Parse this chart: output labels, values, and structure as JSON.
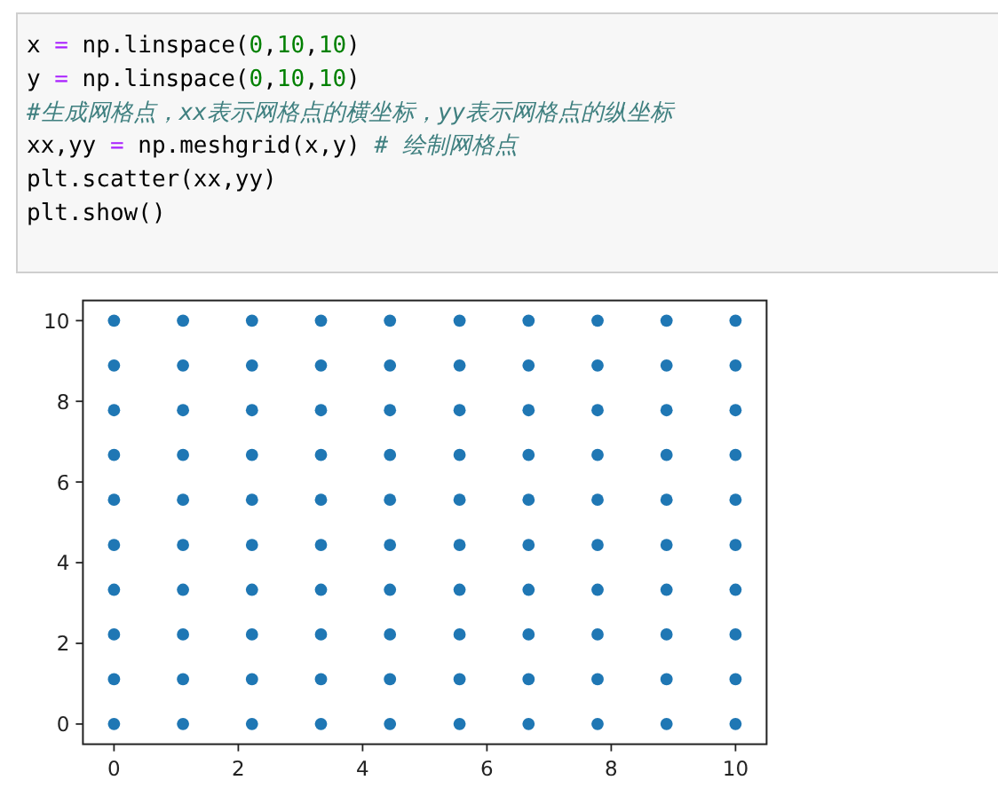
{
  "chart_data": {
    "type": "scatter",
    "marker": "circle",
    "annotations": [
      "x = np.linspace(0,10,10)",
      "y = np.linspace(0,10,10)",
      "#生成网格点，xx表示网格点的横坐标，yy表示网格点的纵坐标",
      "xx,yy = np.meshgrid(x,y) # 绘制网格点",
      "plt.scatter(xx,yy)",
      "plt.show()"
    ],
    "x": [
      0,
      1.11,
      2.22,
      3.33,
      4.44,
      5.56,
      6.67,
      7.78,
      8.89,
      10,
      0,
      1.11,
      2.22,
      3.33,
      4.44,
      5.56,
      6.67,
      7.78,
      8.89,
      10,
      0,
      1.11,
      2.22,
      3.33,
      4.44,
      5.56,
      6.67,
      7.78,
      8.89,
      10,
      0,
      1.11,
      2.22,
      3.33,
      4.44,
      5.56,
      6.67,
      7.78,
      8.89,
      10,
      0,
      1.11,
      2.22,
      3.33,
      4.44,
      5.56,
      6.67,
      7.78,
      8.89,
      10,
      0,
      1.11,
      2.22,
      3.33,
      4.44,
      5.56,
      6.67,
      7.78,
      8.89,
      10,
      0,
      1.11,
      2.22,
      3.33,
      4.44,
      5.56,
      6.67,
      7.78,
      8.89,
      10,
      0,
      1.11,
      2.22,
      3.33,
      4.44,
      5.56,
      6.67,
      7.78,
      8.89,
      10,
      0,
      1.11,
      2.22,
      3.33,
      4.44,
      5.56,
      6.67,
      7.78,
      8.89,
      10,
      0,
      1.11,
      2.22,
      3.33,
      4.44,
      5.56,
      6.67,
      7.78,
      8.89,
      10
    ],
    "series": [
      {
        "color": "#1f77b4",
        "values": [
          0,
          0,
          0,
          0,
          0,
          0,
          0,
          0,
          0,
          0,
          1.11,
          1.11,
          1.11,
          1.11,
          1.11,
          1.11,
          1.11,
          1.11,
          1.11,
          1.11,
          2.22,
          2.22,
          2.22,
          2.22,
          2.22,
          2.22,
          2.22,
          2.22,
          2.22,
          2.22,
          3.33,
          3.33,
          3.33,
          3.33,
          3.33,
          3.33,
          3.33,
          3.33,
          3.33,
          3.33,
          4.44,
          4.44,
          4.44,
          4.44,
          4.44,
          4.44,
          4.44,
          4.44,
          4.44,
          4.44,
          5.56,
          5.56,
          5.56,
          5.56,
          5.56,
          5.56,
          5.56,
          5.56,
          5.56,
          5.56,
          6.67,
          6.67,
          6.67,
          6.67,
          6.67,
          6.67,
          6.67,
          6.67,
          6.67,
          6.67,
          7.78,
          7.78,
          7.78,
          7.78,
          7.78,
          7.78,
          7.78,
          7.78,
          7.78,
          7.78,
          8.89,
          8.89,
          8.89,
          8.89,
          8.89,
          8.89,
          8.89,
          8.89,
          8.89,
          8.89,
          10,
          10,
          10,
          10,
          10,
          10,
          10,
          10,
          10,
          10
        ]
      }
    ],
    "xlim": [
      -0.5,
      10.5
    ],
    "ylim": [
      -0.5,
      10.5
    ],
    "xticks": [
      0,
      2,
      4,
      6,
      8,
      10
    ],
    "yticks": [
      0,
      2,
      4,
      6,
      8,
      10
    ]
  }
}
